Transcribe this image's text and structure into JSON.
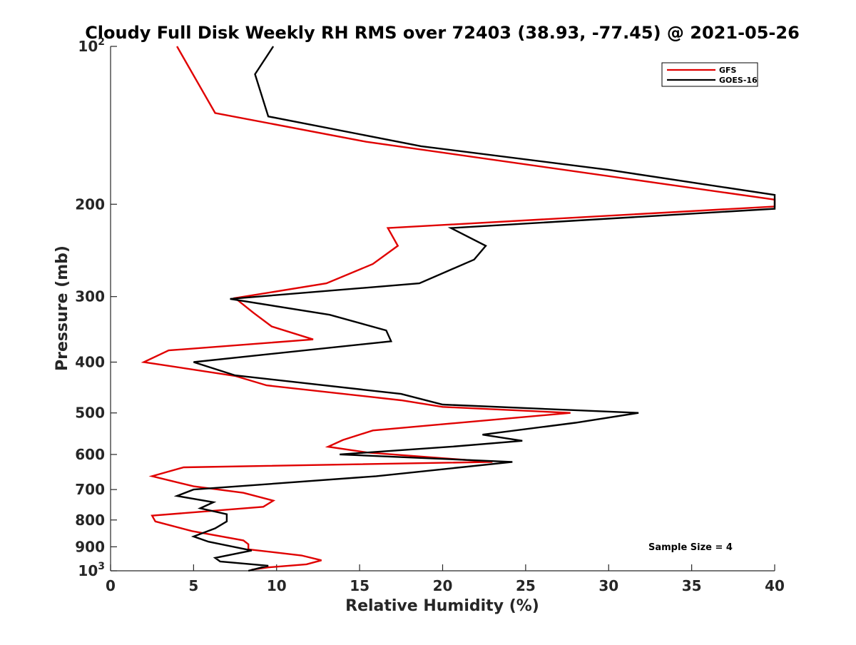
{
  "chart_data": {
    "type": "line",
    "title": "Cloudy Full Disk Weekly RH RMS over 72403 (38.93, -77.45) @ 2021-05-26",
    "xlabel": "Relative Humidity (%)",
    "ylabel": "Pressure (mb)",
    "xlim": [
      0,
      40
    ],
    "ylim": [
      100,
      1000
    ],
    "yscale": "log",
    "y_reversed": true,
    "x_ticks": [
      "0",
      "5",
      "10",
      "15",
      "20",
      "25",
      "30",
      "35",
      "40"
    ],
    "y_ticks": [
      {
        "value": 100,
        "label": "10",
        "exp": "2"
      },
      {
        "value": 200,
        "label": "200"
      },
      {
        "value": 300,
        "label": "300"
      },
      {
        "value": 400,
        "label": "400"
      },
      {
        "value": 500,
        "label": "500"
      },
      {
        "value": 600,
        "label": "600"
      },
      {
        "value": 700,
        "label": "700"
      },
      {
        "value": 800,
        "label": "800"
      },
      {
        "value": 900,
        "label": "900"
      },
      {
        "value": 1000,
        "label": "10",
        "exp": "3"
      }
    ],
    "legend_position": "top-right",
    "grid": false,
    "annotation": "Sample Size = 4",
    "series": [
      {
        "name": "GFS",
        "color": "#e00000",
        "points": [
          [
            4.0,
            100
          ],
          [
            6.3,
            134
          ],
          [
            15.4,
            152
          ],
          [
            40.0,
            196
          ],
          [
            40.0,
            202
          ],
          [
            16.7,
            222
          ],
          [
            17.3,
            240
          ],
          [
            15.8,
            260
          ],
          [
            13.0,
            283
          ],
          [
            7.5,
            302
          ],
          [
            8.6,
            322
          ],
          [
            9.7,
            342
          ],
          [
            12.2,
            362
          ],
          [
            3.5,
            380
          ],
          [
            2.0,
            400
          ],
          [
            7.5,
            425
          ],
          [
            9.4,
            443
          ],
          [
            17.5,
            473
          ],
          [
            20.0,
            487
          ],
          [
            27.7,
            500
          ],
          [
            22.8,
            516
          ],
          [
            15.8,
            540
          ],
          [
            14.0,
            563
          ],
          [
            13.1,
            580
          ],
          [
            15.5,
            595
          ],
          [
            23.0,
            620
          ],
          [
            4.4,
            635
          ],
          [
            2.5,
            660
          ],
          [
            5.0,
            690
          ],
          [
            8.0,
            710
          ],
          [
            9.8,
            735
          ],
          [
            9.2,
            755
          ],
          [
            2.5,
            785
          ],
          [
            2.7,
            805
          ],
          [
            4.9,
            840
          ],
          [
            8.0,
            875
          ],
          [
            8.3,
            890
          ],
          [
            8.3,
            910
          ],
          [
            11.5,
            935
          ],
          [
            12.7,
            955
          ],
          [
            11.8,
            972
          ],
          [
            9.5,
            985
          ],
          [
            8.5,
            995
          ]
        ]
      },
      {
        "name": "GOES-16",
        "color": "#000000",
        "points": [
          [
            9.8,
            100
          ],
          [
            8.7,
            113
          ],
          [
            9.5,
            136
          ],
          [
            18.7,
            155
          ],
          [
            30.0,
            172
          ],
          [
            40.0,
            192
          ],
          [
            40.0,
            204
          ],
          [
            20.5,
            222
          ],
          [
            22.6,
            240
          ],
          [
            21.9,
            255
          ],
          [
            18.6,
            283
          ],
          [
            7.2,
            303
          ],
          [
            13.2,
            325
          ],
          [
            16.6,
            348
          ],
          [
            16.9,
            365
          ],
          [
            5.0,
            400
          ],
          [
            7.5,
            424
          ],
          [
            17.5,
            460
          ],
          [
            20.0,
            482
          ],
          [
            31.8,
            500
          ],
          [
            28.0,
            522
          ],
          [
            22.4,
            550
          ],
          [
            24.8,
            565
          ],
          [
            20.5,
            580
          ],
          [
            13.8,
            600
          ],
          [
            24.2,
            620
          ],
          [
            16.0,
            660
          ],
          [
            5.0,
            700
          ],
          [
            4.0,
            720
          ],
          [
            6.2,
            740
          ],
          [
            5.4,
            760
          ],
          [
            7.0,
            780
          ],
          [
            7.0,
            805
          ],
          [
            6.3,
            830
          ],
          [
            5.0,
            860
          ],
          [
            5.9,
            880
          ],
          [
            8.5,
            915
          ],
          [
            6.3,
            945
          ],
          [
            6.6,
            960
          ],
          [
            9.5,
            978
          ],
          [
            8.3,
            1000
          ]
        ]
      }
    ]
  }
}
